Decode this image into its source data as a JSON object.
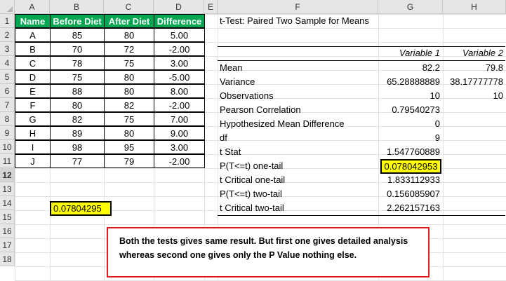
{
  "columns": [
    "A",
    "B",
    "C",
    "D",
    "E",
    "F",
    "G",
    "H"
  ],
  "rows": [
    "1",
    "2",
    "3",
    "4",
    "5",
    "6",
    "7",
    "8",
    "9",
    "10",
    "11",
    "12",
    "13",
    "14",
    "15",
    "16",
    "17",
    "18"
  ],
  "table": {
    "headers": [
      "Name",
      "Before Diet",
      "After Diet",
      "Difference"
    ],
    "rows": [
      [
        "A",
        "85",
        "80",
        "5.00"
      ],
      [
        "B",
        "70",
        "72",
        "-2.00"
      ],
      [
        "C",
        "78",
        "75",
        "3.00"
      ],
      [
        "D",
        "75",
        "80",
        "-5.00"
      ],
      [
        "E",
        "88",
        "80",
        "8.00"
      ],
      [
        "F",
        "80",
        "82",
        "-2.00"
      ],
      [
        "G",
        "82",
        "75",
        "7.00"
      ],
      [
        "H",
        "89",
        "80",
        "9.00"
      ],
      [
        "I",
        "98",
        "95",
        "3.00"
      ],
      [
        "J",
        "77",
        "79",
        "-2.00"
      ]
    ]
  },
  "ttest": {
    "title": "t-Test: Paired Two Sample for Means",
    "var1": "Variable 1",
    "var2": "Variable 2",
    "stats": [
      {
        "label": "Mean",
        "v1": "82.2",
        "v2": "79.8"
      },
      {
        "label": "Variance",
        "v1": "65.28888889",
        "v2": "38.17777778"
      },
      {
        "label": "Observations",
        "v1": "10",
        "v2": "10"
      },
      {
        "label": "Pearson Correlation",
        "v1": "0.79540273",
        "v2": ""
      },
      {
        "label": "Hypothesized Mean Difference",
        "v1": "0",
        "v2": ""
      },
      {
        "label": "df",
        "v1": "9",
        "v2": ""
      },
      {
        "label": "t Stat",
        "v1": "1.547760889",
        "v2": ""
      },
      {
        "label": "P(T<=t) one-tail",
        "v1": "0.078042953",
        "v2": ""
      },
      {
        "label": "t Critical one-tail",
        "v1": "1.833112933",
        "v2": ""
      },
      {
        "label": "P(T<=t) two-tail",
        "v1": "0.156085907",
        "v2": ""
      },
      {
        "label": "t Critical two-tail",
        "v1": "2.262157163",
        "v2": ""
      }
    ]
  },
  "ttest_function_result": "0.07804295",
  "note": "Both the tests gives same result. But first one gives detailed analysis whereas second one gives only the P Value nothing else.",
  "colors": {
    "header_green": "#00a651",
    "highlight": "#ffff00",
    "note_border": "#e01b1b"
  }
}
